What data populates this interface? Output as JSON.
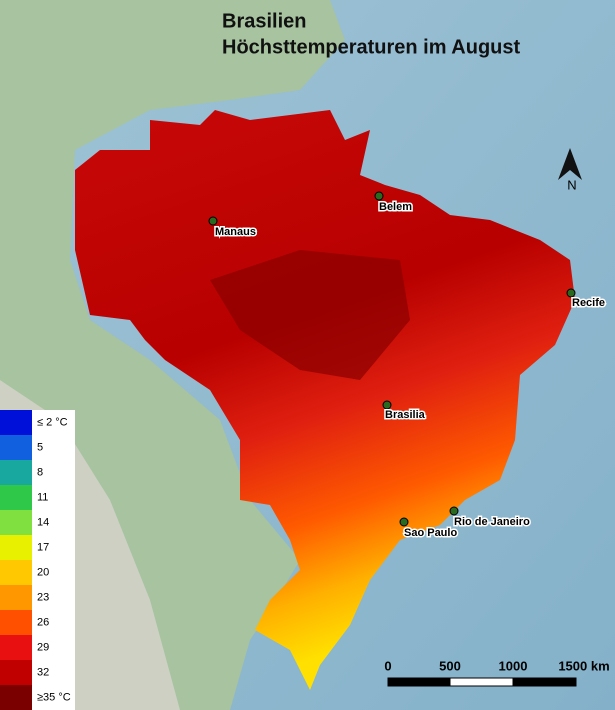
{
  "title": [
    "Brasilien",
    "Höchsttemperaturen im August"
  ],
  "north": "N",
  "cities": [
    {
      "name": "Manaus"
    },
    {
      "name": "Belem"
    },
    {
      "name": "Recife"
    },
    {
      "name": "Brasilia"
    },
    {
      "name": "Sao Paulo"
    },
    {
      "name": "Rio de Janeiro"
    }
  ],
  "legend": [
    {
      "label": "≤ 2 °C",
      "color": "#0010d8"
    },
    {
      "label": "5",
      "color": "#1060e0"
    },
    {
      "label": "8",
      "color": "#18a8a0"
    },
    {
      "label": "11",
      "color": "#30c848"
    },
    {
      "label": "14",
      "color": "#80e040"
    },
    {
      "label": "17",
      "color": "#e8f000"
    },
    {
      "label": "20",
      "color": "#ffc800"
    },
    {
      "label": "23",
      "color": "#ff9800"
    },
    {
      "label": "26",
      "color": "#ff5000"
    },
    {
      "label": "29",
      "color": "#e81010"
    },
    {
      "label": "32",
      "color": "#c00000"
    },
    {
      "label": "≥35 °C",
      "color": "#7a0000"
    }
  ],
  "scale": [
    "0",
    "500",
    "1000",
    "1500 km"
  ]
}
